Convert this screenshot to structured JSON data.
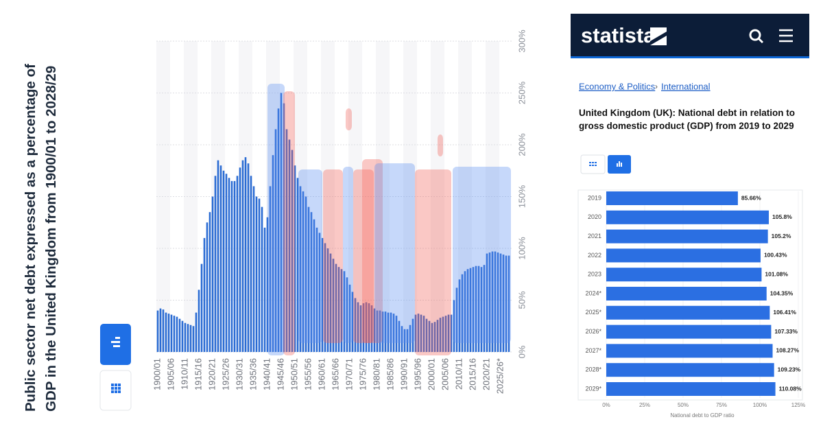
{
  "chart_data": [
    {
      "type": "bar",
      "title": "Public sector net debt expressed as a percentage of GDP in the United Kingdom from 1900/01 to 2028/29",
      "categories": [
        "1900/01",
        null,
        null,
        null,
        null,
        "1905/06",
        null,
        null,
        null,
        null,
        "1910/11",
        null,
        null,
        null,
        null,
        "1915/16",
        null,
        null,
        null,
        null,
        "1920/21",
        null,
        null,
        null,
        null,
        "1925/26",
        null,
        null,
        null,
        null,
        "1930/31",
        null,
        null,
        null,
        null,
        "1935/36",
        null,
        null,
        null,
        null,
        "1940/41",
        null,
        null,
        null,
        null,
        "1945/46",
        null,
        null,
        null,
        null,
        "1950/51",
        null,
        null,
        null,
        null,
        "1955/56",
        null,
        null,
        null,
        null,
        "1960/61",
        null,
        null,
        null,
        null,
        "1965/66",
        null,
        null,
        null,
        null,
        "1970/71",
        null,
        null,
        null,
        null,
        "1975/76",
        null,
        null,
        null,
        null,
        "1980/81",
        null,
        null,
        null,
        null,
        "1985/86",
        null,
        null,
        null,
        null,
        "1990/91",
        null,
        null,
        null,
        null,
        "1995/96",
        null,
        null,
        null,
        null,
        "2000/01",
        null,
        null,
        null,
        null,
        "2005/06",
        null,
        null,
        null,
        null,
        "2010/11",
        null,
        null,
        null,
        null,
        "2015/16",
        null,
        null,
        null,
        null,
        "2020/21",
        null,
        null,
        null,
        null,
        "2025/26*",
        null,
        null,
        null
      ],
      "values": [
        40,
        42,
        41,
        38,
        37,
        36,
        35,
        34,
        32,
        30,
        28,
        27,
        26,
        25,
        38,
        60,
        85,
        110,
        125,
        135,
        150,
        170,
        185,
        180,
        175,
        172,
        168,
        165,
        165,
        170,
        178,
        185,
        188,
        182,
        170,
        160,
        150,
        148,
        140,
        120,
        130,
        160,
        190,
        215,
        235,
        250,
        240,
        215,
        205,
        195,
        180,
        168,
        160,
        155,
        150,
        140,
        135,
        128,
        120,
        115,
        110,
        105,
        100,
        95,
        90,
        85,
        82,
        80,
        78,
        72,
        65,
        58,
        52,
        48,
        45,
        47,
        48,
        47,
        45,
        42,
        40,
        40,
        39,
        39,
        38,
        38,
        37,
        35,
        30,
        25,
        22,
        22,
        26,
        32,
        36,
        37,
        36,
        35,
        32,
        30,
        28,
        29,
        31,
        33,
        34,
        35,
        36,
        36,
        50,
        62,
        70,
        75,
        78,
        80,
        81,
        82,
        83,
        83,
        82,
        84,
        95,
        96,
        97,
        97,
        96,
        95,
        94,
        93,
        93
      ],
      "color": "#2a6bd3",
      "ylim": [
        0,
        300
      ],
      "yticks": [
        {
          "value": 0,
          "label": "0%"
        },
        {
          "value": 50,
          "label": "50%"
        },
        {
          "value": 100,
          "label": "100%"
        },
        {
          "value": 150,
          "label": "150%"
        },
        {
          "value": 200,
          "label": "200%"
        },
        {
          "value": 250,
          "label": "250%"
        },
        {
          "value": 300,
          "label": "300%"
        }
      ],
      "grid": true
    },
    {
      "type": "hbar",
      "title": "United Kingdom (UK): National debt in relation to gross domestic product (GDP) from 2019 to 2029",
      "categories": [
        "2019",
        "2020",
        "2021",
        "2022",
        "2023",
        "2024*",
        "2025*",
        "2026*",
        "2027*",
        "2028*",
        "2029*"
      ],
      "values": [
        85.66,
        105.8,
        105.2,
        100.43,
        101.08,
        104.35,
        106.41,
        107.33,
        108.27,
        109.23,
        110.08
      ],
      "value_labels": [
        "85.66%",
        "105.8%",
        "105.2%",
        "100.43%",
        "101.08%",
        "104.35%",
        "106.41%",
        "107.33%",
        "108.27%",
        "109.23%",
        "110.08%"
      ],
      "color": "#2b6fe2",
      "xlabel": "National debt to GDP ratio",
      "xlim": [
        0,
        125
      ],
      "xticks": [
        {
          "value": 0,
          "label": "0%"
        },
        {
          "value": 25,
          "label": "25%"
        },
        {
          "value": 50,
          "label": "50%"
        },
        {
          "value": 75,
          "label": "75%"
        },
        {
          "value": 100,
          "label": "100%"
        },
        {
          "value": 125,
          "label": "125%"
        }
      ],
      "grid": true
    }
  ],
  "header": {
    "logo": "statista"
  },
  "breadcrumb": {
    "items": [
      "Economy & Politics",
      "International"
    ],
    "separator": "›"
  }
}
